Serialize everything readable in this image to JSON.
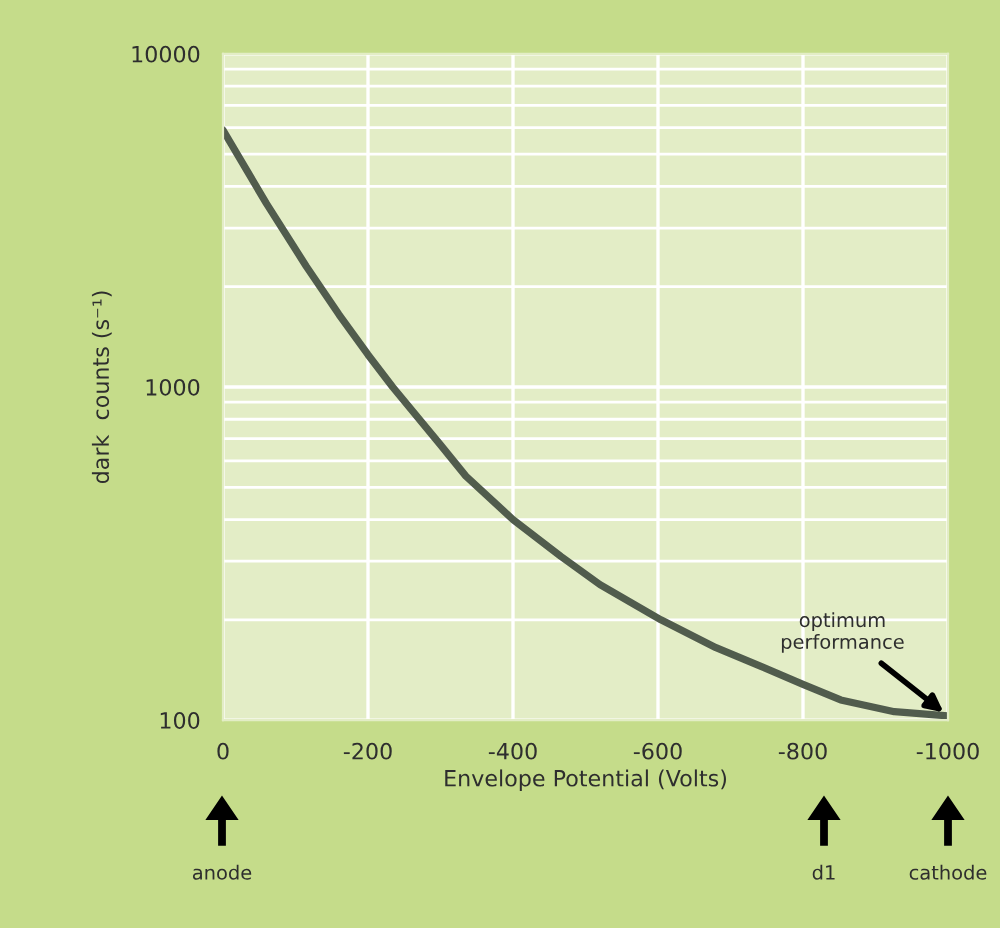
{
  "chart_data": {
    "type": "line",
    "xlabel": "Envelope Potential (Volts)",
    "ylabel": "dark  counts (s⁻¹)",
    "x": [
      0,
      -60,
      -115,
      -160,
      -200,
      -234,
      -300,
      -335,
      -400,
      -466,
      -520,
      -604,
      -680,
      -742,
      -800,
      -852,
      -926,
      -1000
    ],
    "series": [
      {
        "color": "#515c4d",
        "values": [
          5900,
          3550,
          2300,
          1650,
          1250,
          1000,
          670,
          540,
          400,
          310,
          255,
          200,
          165,
          145,
          128,
          115,
          106,
          103
        ]
      }
    ],
    "log": true,
    "xlim": [
      0,
      -1000
    ],
    "ylim": [
      100,
      10000
    ],
    "xticks": [
      0,
      -200,
      -400,
      -600,
      -800,
      -1000
    ],
    "yticks": [
      100,
      1000,
      10000
    ],
    "grid": true,
    "marker": "none",
    "line_style": "solid",
    "annotations": [
      {
        "text": "optimum\nperformance",
        "x": -1000,
        "y": 103
      },
      "anode",
      "d1",
      "cathode"
    ]
  }
}
